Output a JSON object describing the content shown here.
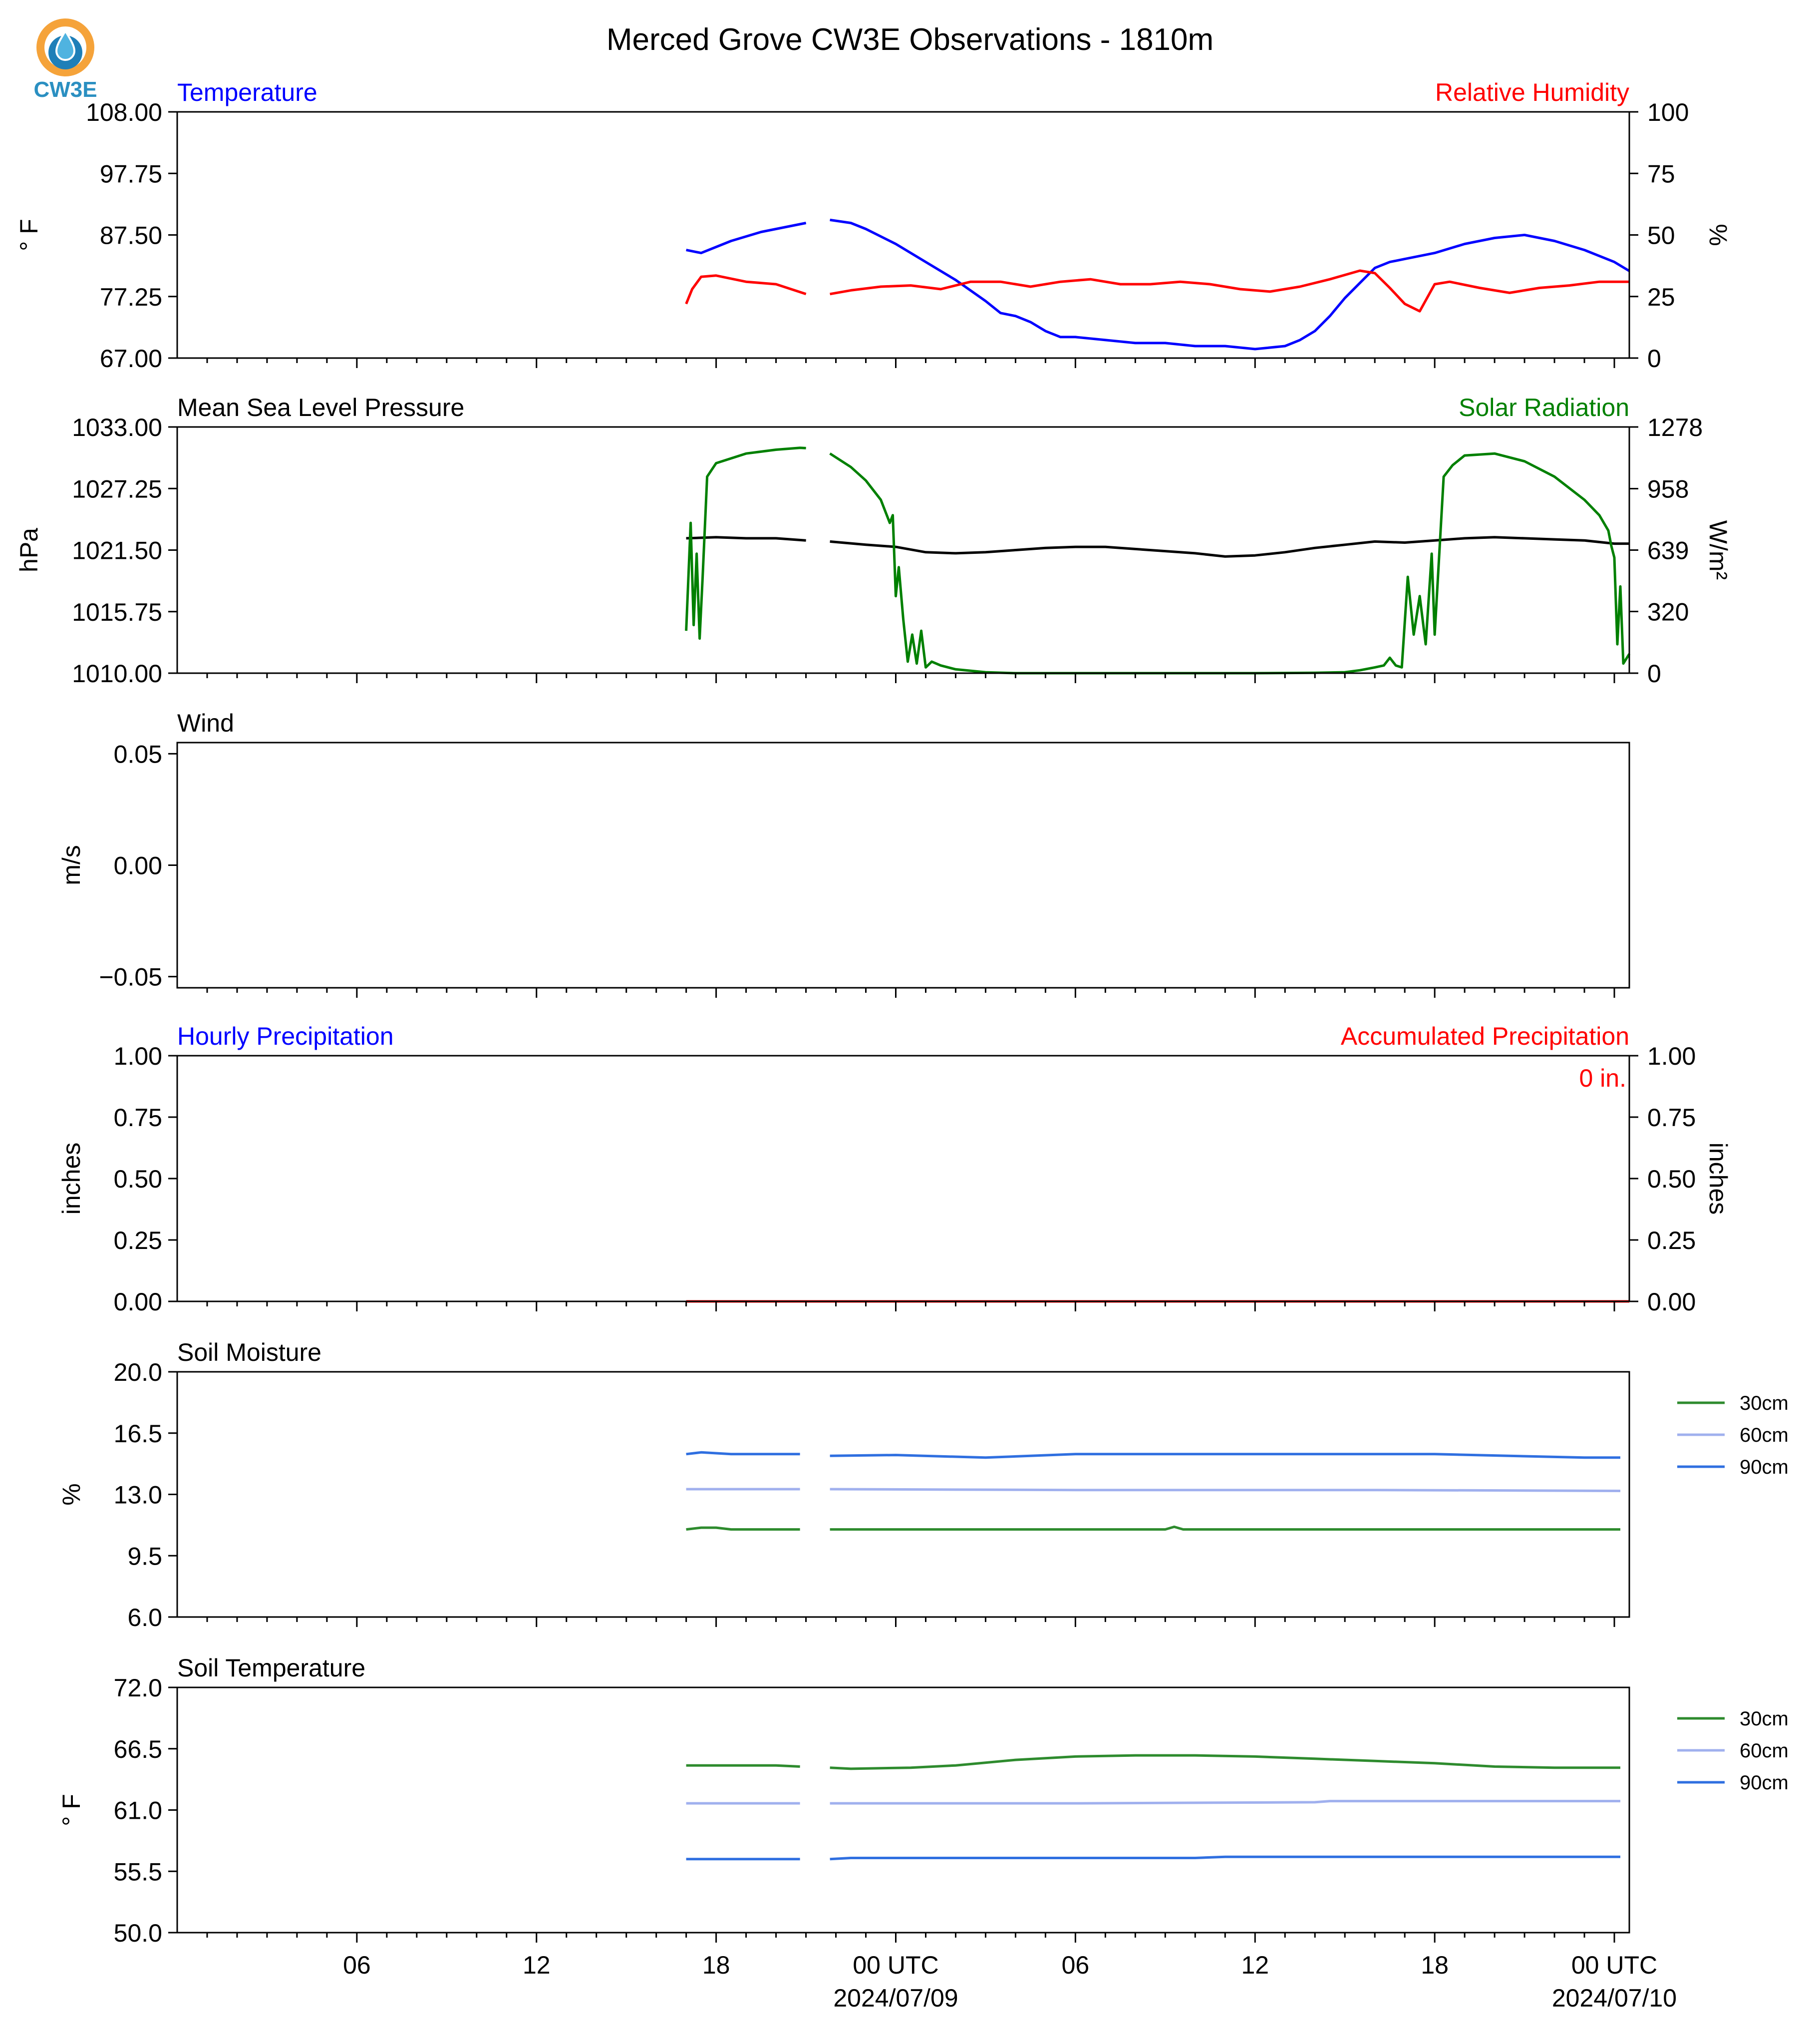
{
  "title": "Merced Grove CW3E Observations - 1810m",
  "logo": {
    "text": "CW3E",
    "colors": {
      "ring": "#f5a33a",
      "drop": "#1e7fb8",
      "text": "#2a8fc1"
    }
  },
  "colors": {
    "blue": "#0000ff",
    "red": "#ff0000",
    "green": "#008000",
    "black": "#000000",
    "soil30": "#2e8b2e",
    "soil60": "#a0b0ee",
    "soil90": "#2f6fe0"
  },
  "x_axis": {
    "tick_labels": [
      "06",
      "12",
      "18",
      "00 UTC",
      "06",
      "12",
      "18",
      "00 UTC"
    ],
    "tick_hours": [
      6,
      12,
      18,
      24,
      30,
      36,
      42,
      48
    ],
    "date_labels": [
      "2024/07/09",
      "2024/07/10"
    ],
    "range_hours": [
      0,
      48.5
    ]
  },
  "chart_data": [
    {
      "type": "line",
      "name": "panel1",
      "title_left": "Temperature",
      "title_right": "Relative Humidity",
      "ylabel": "° F",
      "ylabel_right": "%",
      "ylim": [
        67.0,
        108.0
      ],
      "yticks": [
        "67.00",
        "77.25",
        "87.50",
        "97.75",
        "108.00"
      ],
      "ylim_right": [
        0,
        100
      ],
      "yticks_right": [
        "0",
        "25",
        "50",
        "75",
        "100"
      ],
      "series": [
        {
          "axis": "left",
          "color": "blue",
          "x": [
            17.0,
            17.5,
            18.5,
            19.5,
            20.5,
            21.0,
            null,
            21.8,
            22.5,
            23.0,
            24.0,
            25.0,
            26.0,
            27.0,
            27.5,
            28.0,
            28.5,
            29.0,
            29.5,
            30.0,
            31.0,
            32.0,
            33.0,
            34.0,
            35.0,
            36.0,
            37.0,
            37.5,
            38.0,
            38.5,
            39.0,
            39.5,
            40.0,
            40.5,
            41.0,
            42.0,
            43.0,
            44.0,
            45.0,
            46.0,
            47.0,
            48.0,
            48.5
          ],
          "y": [
            85.0,
            84.5,
            86.5,
            88.0,
            89.0,
            89.5,
            null,
            90.0,
            89.5,
            88.5,
            86.0,
            83.0,
            80.0,
            76.5,
            74.5,
            74.0,
            73.0,
            71.5,
            70.5,
            70.5,
            70.0,
            69.5,
            69.5,
            69.0,
            69.0,
            68.5,
            69.0,
            70.0,
            71.5,
            74.0,
            77.0,
            79.5,
            82.0,
            83.0,
            83.5,
            84.5,
            86.0,
            87.0,
            87.5,
            86.5,
            85.0,
            83.0,
            81.5
          ]
        },
        {
          "axis": "right",
          "color": "red",
          "x": [
            17.0,
            17.2,
            17.5,
            18.0,
            19.0,
            20.0,
            21.0,
            null,
            21.8,
            22.5,
            23.5,
            24.5,
            25.5,
            26.5,
            27.5,
            28.5,
            29.5,
            30.5,
            31.5,
            32.5,
            33.5,
            34.5,
            35.5,
            36.5,
            37.5,
            38.5,
            39.5,
            40.0,
            40.5,
            41.0,
            41.5,
            42.0,
            42.5,
            43.5,
            44.5,
            45.5,
            46.5,
            47.5,
            48.5
          ],
          "y": [
            22.0,
            28.0,
            33.0,
            33.5,
            31.0,
            30.0,
            26.0,
            null,
            26.0,
            27.5,
            29.0,
            29.5,
            28.0,
            31.0,
            31.0,
            29.0,
            31.0,
            32.0,
            30.0,
            30.0,
            31.0,
            30.0,
            28.0,
            27.0,
            29.0,
            32.0,
            35.5,
            34.5,
            28.5,
            22.0,
            19.0,
            30.0,
            31.0,
            28.5,
            26.5,
            28.5,
            29.5,
            31.0,
            31.0
          ]
        }
      ]
    },
    {
      "type": "line",
      "name": "panel2",
      "title_left": "Mean Sea Level Pressure",
      "title_right": "Solar Radiation",
      "ylabel": "hPa",
      "ylabel_right": "W/m²",
      "ylim": [
        1010.0,
        1033.0
      ],
      "yticks": [
        "1010.00",
        "1015.75",
        "1021.50",
        "1027.25",
        "1033.00"
      ],
      "ylim_right": [
        0,
        1278
      ],
      "yticks_right": [
        "0",
        "320",
        "639",
        "958",
        "1278"
      ],
      "series": [
        {
          "axis": "left",
          "color": "black",
          "x": [
            17.0,
            18.0,
            19.0,
            20.0,
            21.0,
            null,
            21.8,
            23.0,
            24.0,
            25.0,
            26.0,
            27.0,
            28.0,
            29.0,
            30.0,
            31.0,
            32.0,
            33.0,
            34.0,
            35.0,
            36.0,
            37.0,
            38.0,
            39.0,
            40.0,
            41.0,
            42.0,
            43.0,
            44.0,
            45.0,
            46.0,
            47.0,
            48.0,
            48.5
          ],
          "y": [
            1022.6,
            1022.7,
            1022.6,
            1022.6,
            1022.4,
            null,
            1022.3,
            1022.0,
            1021.8,
            1021.3,
            1021.2,
            1021.3,
            1021.5,
            1021.7,
            1021.8,
            1021.8,
            1021.6,
            1021.4,
            1021.2,
            1020.9,
            1021.0,
            1021.3,
            1021.7,
            1022.0,
            1022.3,
            1022.2,
            1022.4,
            1022.6,
            1022.7,
            1022.6,
            1022.5,
            1022.4,
            1022.1,
            1022.1
          ]
        },
        {
          "axis": "right",
          "color": "green",
          "x": [
            17.0,
            17.15,
            17.25,
            17.35,
            17.45,
            17.55,
            17.7,
            18.0,
            19.0,
            20.0,
            20.8,
            21.0,
            null,
            21.8,
            22.5,
            23.0,
            23.5,
            23.8,
            23.9,
            24.0,
            24.1,
            24.25,
            24.4,
            24.55,
            24.7,
            24.85,
            25.0,
            25.2,
            25.5,
            26.0,
            27.0,
            28.0,
            30.0,
            32.0,
            34.0,
            36.0,
            38.0,
            39.0,
            39.5,
            40.0,
            40.3,
            40.5,
            40.7,
            40.9,
            41.1,
            41.3,
            41.5,
            41.7,
            41.9,
            42.0,
            42.3,
            42.6,
            43.0,
            44.0,
            45.0,
            46.0,
            47.0,
            47.5,
            47.8,
            47.9,
            48.0,
            48.1,
            48.2,
            48.3,
            48.5
          ],
          "y": [
            220,
            780,
            250,
            620,
            180,
            500,
            1020,
            1090,
            1140,
            1160,
            1170,
            1168,
            null,
            1140,
            1070,
            1000,
            900,
            780,
            820,
            400,
            550,
            280,
            60,
            200,
            50,
            220,
            30,
            60,
            40,
            20,
            5,
            0,
            0,
            0,
            0,
            0,
            2,
            5,
            15,
            30,
            40,
            80,
            40,
            30,
            500,
            200,
            400,
            150,
            620,
            200,
            1020,
            1080,
            1130,
            1140,
            1100,
            1020,
            900,
            820,
            740,
            660,
            600,
            150,
            450,
            50,
            100
          ]
        }
      ]
    },
    {
      "type": "line",
      "name": "panel3",
      "title_left": "Wind",
      "ylabel": "m/s",
      "ylim": [
        -0.055,
        0.055
      ],
      "yticks": [
        "−0.05",
        "0.00",
        "0.05"
      ],
      "series": []
    },
    {
      "type": "line",
      "name": "panel4",
      "title_left": "Hourly Precipitation",
      "title_right": "Accumulated Precipitation",
      "ylabel": "inches",
      "ylabel_right": "inches",
      "ylim": [
        0.0,
        1.0
      ],
      "yticks": [
        "0.00",
        "0.25",
        "0.50",
        "0.75",
        "1.00"
      ],
      "ylim_right": [
        0.0,
        1.0
      ],
      "yticks_right": [
        "0.00",
        "0.25",
        "0.50",
        "0.75",
        "1.00"
      ],
      "annotation": "0 in.",
      "series": [
        {
          "axis": "right",
          "color": "red",
          "x": [
            17.0,
            48.5
          ],
          "y": [
            0.0,
            0.0
          ]
        }
      ]
    },
    {
      "type": "line",
      "name": "panel5",
      "title_left": "Soil Moisture",
      "ylabel": "%",
      "ylim": [
        6.0,
        20.0
      ],
      "yticks": [
        "6.0",
        "9.5",
        "13.0",
        "16.5",
        "20.0"
      ],
      "legend": "right",
      "series": [
        {
          "name": "30cm",
          "color": "soil30",
          "x": [
            17.0,
            17.5,
            18.0,
            18.5,
            20.8,
            null,
            21.8,
            33.0,
            33.3,
            33.6,
            48.2
          ],
          "y": [
            11.0,
            11.1,
            11.1,
            11.0,
            11.0,
            null,
            11.0,
            11.0,
            11.15,
            11.0,
            11.0
          ]
        },
        {
          "name": "60cm",
          "color": "soil60",
          "x": [
            17.0,
            20.8,
            null,
            21.8,
            30.0,
            40.0,
            48.2
          ],
          "y": [
            13.3,
            13.3,
            null,
            13.3,
            13.25,
            13.25,
            13.2
          ]
        },
        {
          "name": "90cm",
          "color": "soil90",
          "x": [
            17.0,
            17.5,
            18.5,
            20.8,
            null,
            21.8,
            24.0,
            27.0,
            30.0,
            36.0,
            42.0,
            47.0,
            48.2
          ],
          "y": [
            15.3,
            15.4,
            15.3,
            15.3,
            null,
            15.2,
            15.25,
            15.1,
            15.3,
            15.3,
            15.3,
            15.1,
            15.1
          ]
        }
      ]
    },
    {
      "type": "line",
      "name": "panel6",
      "title_left": "Soil Temperature",
      "ylabel": "° F",
      "ylim": [
        50.0,
        72.0
      ],
      "yticks": [
        "50.0",
        "55.5",
        "61.0",
        "66.5",
        "72.0"
      ],
      "legend": "right",
      "series": [
        {
          "name": "30cm",
          "color": "soil30",
          "x": [
            17.0,
            20.0,
            20.8,
            null,
            21.8,
            22.5,
            24.5,
            26.0,
            28.0,
            30.0,
            32.0,
            34.0,
            36.0,
            38.0,
            40.0,
            42.0,
            44.0,
            46.0,
            48.2
          ],
          "y": [
            65.0,
            65.0,
            64.9,
            null,
            64.8,
            64.7,
            64.8,
            65.0,
            65.5,
            65.8,
            65.9,
            65.9,
            65.8,
            65.6,
            65.4,
            65.2,
            64.9,
            64.8,
            64.8
          ]
        },
        {
          "name": "60cm",
          "color": "soil60",
          "x": [
            17.0,
            20.8,
            null,
            21.8,
            30.0,
            38.0,
            38.5,
            48.2
          ],
          "y": [
            61.6,
            61.6,
            null,
            61.6,
            61.6,
            61.7,
            61.8,
            61.8
          ]
        },
        {
          "name": "90cm",
          "color": "soil90",
          "x": [
            17.0,
            20.8,
            null,
            21.8,
            22.5,
            34.0,
            35.0,
            36.0,
            38.0,
            48.2
          ],
          "y": [
            56.6,
            56.6,
            null,
            56.6,
            56.7,
            56.7,
            56.8,
            56.8,
            56.8,
            56.8
          ]
        }
      ]
    }
  ]
}
